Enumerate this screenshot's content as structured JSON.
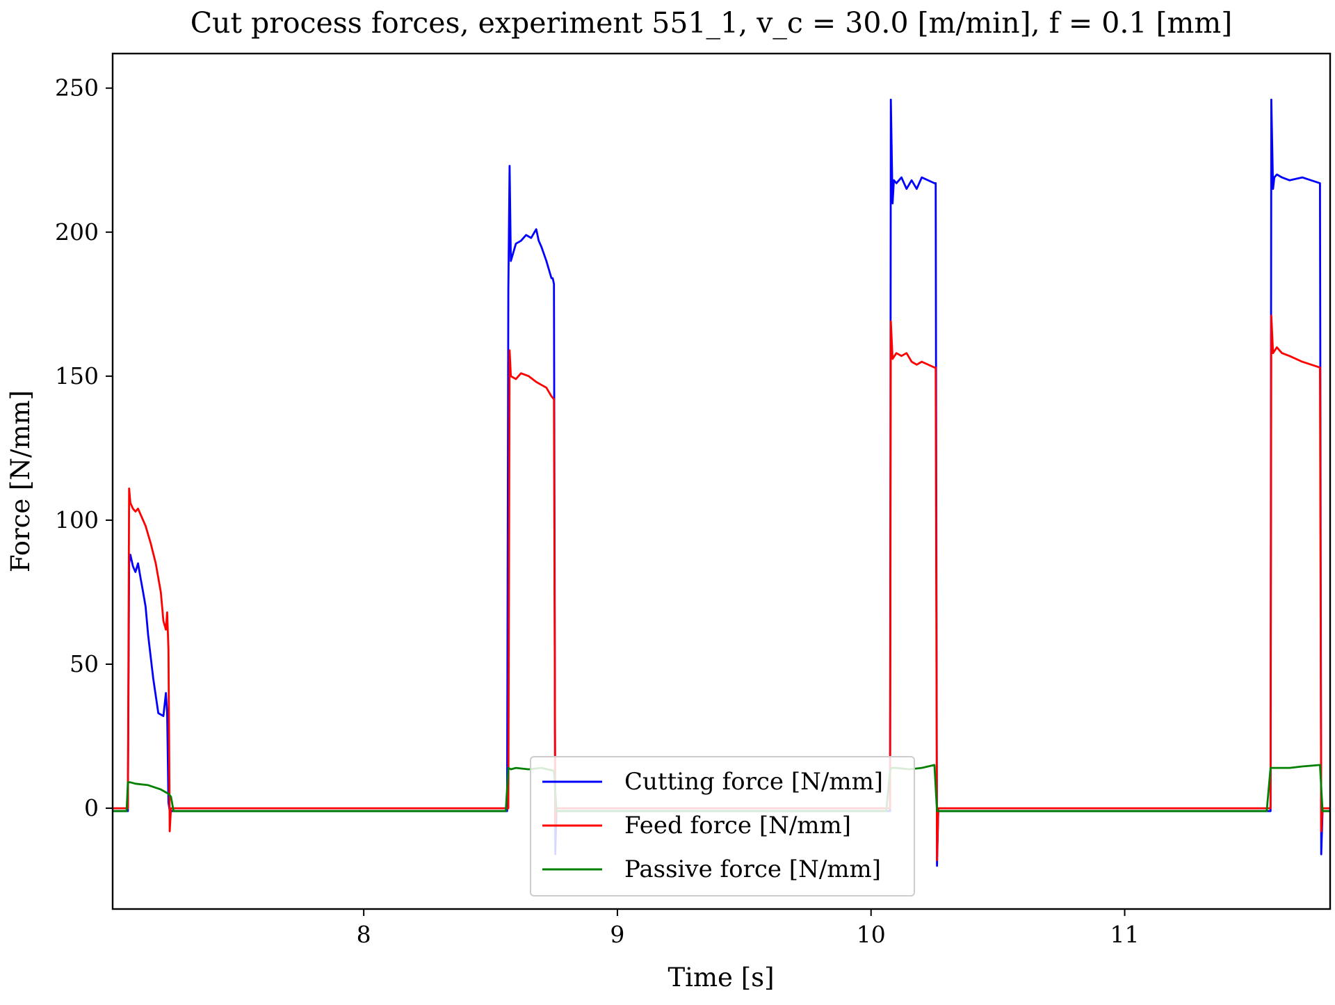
{
  "chart_data": {
    "type": "line",
    "title": "Cut process forces, experiment 551_1, v_c = 30.0 [m/min], f = 0.1 [mm]",
    "xlabel": "Time [s]",
    "ylabel": "Force [N/mm]",
    "xlim": [
      7.01,
      11.81
    ],
    "ylim": [
      -35,
      262
    ],
    "xticks": [
      8,
      9,
      10,
      11
    ],
    "yticks": [
      0,
      50,
      100,
      150,
      200,
      250
    ],
    "grid": false,
    "legend_position": "bottom-center",
    "series": [
      {
        "name": "Cutting force [N/mm]",
        "color": "#0000ff",
        "x": [
          7.01,
          7.06,
          7.07,
          7.075,
          7.08,
          7.09,
          7.1,
          7.11,
          7.12,
          7.13,
          7.14,
          7.15,
          7.17,
          7.19,
          7.21,
          7.22,
          7.225,
          7.23,
          7.235,
          7.24,
          7.26,
          7.3,
          8.0,
          8.55,
          8.565,
          8.57,
          8.575,
          8.58,
          8.6,
          8.62,
          8.64,
          8.66,
          8.68,
          8.69,
          8.7,
          8.72,
          8.74,
          8.745,
          8.75,
          8.755,
          8.76,
          8.78,
          9.0,
          10.06,
          10.075,
          10.078,
          10.085,
          10.09,
          10.1,
          10.12,
          10.14,
          10.16,
          10.18,
          10.2,
          10.25,
          10.255,
          10.26,
          10.265,
          10.27,
          10.29,
          11.0,
          11.56,
          11.575,
          11.578,
          11.585,
          11.59,
          11.6,
          11.62,
          11.65,
          11.7,
          11.77,
          11.775,
          11.78,
          11.79,
          11.81
        ],
        "y": [
          -1,
          -1,
          -1,
          85,
          88,
          84,
          82,
          85,
          80,
          75,
          70,
          60,
          45,
          33,
          32,
          40,
          33,
          2,
          -1,
          -1,
          -1,
          -1,
          -1,
          -1,
          -1,
          180,
          223,
          190,
          196,
          197,
          199,
          198,
          201,
          197,
          195,
          190,
          184,
          184,
          182,
          -16,
          -1,
          -1,
          -1,
          -1,
          -1,
          246,
          210,
          218,
          217,
          219,
          215,
          218,
          215,
          219,
          217,
          217,
          -20,
          -1,
          -1,
          -1,
          -1,
          -1,
          -1,
          246,
          215,
          219,
          220,
          219,
          218,
          219,
          217,
          -16,
          -1,
          -1,
          -1
        ]
      },
      {
        "name": "Feed force [N/mm]",
        "color": "#ff0000",
        "x": [
          7.01,
          7.06,
          7.07,
          7.075,
          7.08,
          7.09,
          7.1,
          7.11,
          7.12,
          7.14,
          7.16,
          7.18,
          7.2,
          7.21,
          7.22,
          7.225,
          7.23,
          7.235,
          7.24,
          7.26,
          7.3,
          8.0,
          8.55,
          8.565,
          8.57,
          8.575,
          8.58,
          8.6,
          8.62,
          8.65,
          8.68,
          8.7,
          8.72,
          8.74,
          8.75,
          8.755,
          8.76,
          8.78,
          9.0,
          10.06,
          10.075,
          10.078,
          10.085,
          10.1,
          10.12,
          10.14,
          10.16,
          10.18,
          10.2,
          10.25,
          10.255,
          10.26,
          10.265,
          10.27,
          10.29,
          11.0,
          11.56,
          11.575,
          11.578,
          11.585,
          11.6,
          11.62,
          11.65,
          11.7,
          11.77,
          11.775,
          11.78,
          11.79,
          11.81
        ],
        "y": [
          0,
          0,
          0,
          111,
          106,
          104,
          103,
          104,
          102,
          98,
          92,
          85,
          75,
          65,
          62,
          68,
          55,
          -8,
          0,
          0,
          0,
          0,
          0,
          0,
          0,
          159,
          150,
          149,
          151,
          150,
          148,
          147,
          146,
          143,
          142,
          -6,
          0,
          0,
          0,
          0,
          0,
          169,
          156,
          158,
          157,
          158,
          155,
          154,
          155,
          153,
          153,
          -18,
          0,
          0,
          0,
          0,
          0,
          0,
          171,
          158,
          160,
          158,
          157,
          155,
          153,
          -8,
          0,
          0,
          0
        ]
      },
      {
        "name": "Passive force [N/mm]",
        "color": "#008000",
        "x": [
          7.01,
          7.06,
          7.065,
          7.07,
          7.08,
          7.1,
          7.15,
          7.2,
          7.23,
          7.24,
          7.25,
          7.3,
          8.0,
          8.56,
          8.57,
          8.58,
          8.6,
          8.65,
          8.7,
          8.75,
          8.76,
          8.77,
          8.8,
          9.0,
          10.06,
          10.075,
          10.08,
          10.1,
          10.15,
          10.2,
          10.25,
          10.26,
          10.27,
          10.3,
          11.0,
          11.56,
          11.575,
          11.58,
          11.6,
          11.65,
          11.7,
          11.77,
          11.78,
          11.8,
          11.81
        ],
        "y": [
          -1,
          -1,
          -1,
          9,
          9,
          8.5,
          8,
          6.5,
          5,
          4,
          -1,
          -1,
          -1,
          -1,
          14,
          13.5,
          14,
          13.5,
          14,
          13,
          -1,
          -1,
          -1,
          -1,
          -1,
          13,
          14,
          14,
          13.5,
          14,
          15,
          -1,
          -1,
          -1,
          -1,
          -1,
          14,
          14,
          14,
          14,
          14.5,
          15,
          -1,
          -1,
          -1
        ]
      }
    ]
  }
}
